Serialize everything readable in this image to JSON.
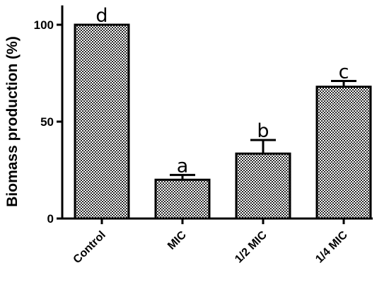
{
  "chart_data": {
    "type": "bar",
    "title": "",
    "xlabel": "",
    "ylabel": "Biomass production (%)",
    "ylim": [
      0,
      110
    ],
    "yticks": [
      0,
      50,
      100
    ],
    "grid": false,
    "categories": [
      "Control",
      "MIC",
      "1/2 MIC",
      "1/4 MIC"
    ],
    "values": [
      100,
      20,
      33.5,
      68
    ],
    "errors": [
      0,
      2.5,
      7,
      3
    ],
    "significance_letters": [
      "d",
      "a",
      "b",
      "c"
    ],
    "bar_pattern": "checkered",
    "bar_color": "#000000"
  }
}
